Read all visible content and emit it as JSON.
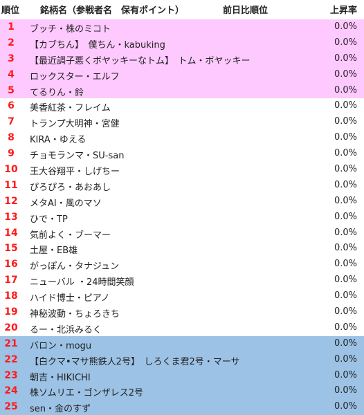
{
  "header": {
    "rank": "順位",
    "name": "銘柄名（参戦者名　保有ポイント）",
    "prev": "前日比順位",
    "rate": "上昇率"
  },
  "colors": {
    "rank_text": "#ff1a1a",
    "top_band": "#fec9fe",
    "bottom_band": "#9cc2e5"
  },
  "rows": [
    {
      "rank": "1",
      "name": "ブッチ・株のミコト",
      "rate": "0.0%",
      "band": "pink"
    },
    {
      "rank": "2",
      "name": "【カブちん】　僕ちん・kabuking",
      "rate": "0.0%",
      "band": "pink"
    },
    {
      "rank": "3",
      "name": "【最近調子悪くボヤッキーなトム】　トム・ボヤッキー",
      "rate": "0.0%",
      "band": "pink"
    },
    {
      "rank": "4",
      "name": "ロックスター・エルフ",
      "rate": "0.0%",
      "band": "pink"
    },
    {
      "rank": "5",
      "name": "てるりん・鈴",
      "rate": "0.0%",
      "band": "pink"
    },
    {
      "rank": "6",
      "name": "美香紅茶・フレイム",
      "rate": "0.0%",
      "band": "white"
    },
    {
      "rank": "7",
      "name": "トランプ大明神・宮健",
      "rate": "0.0%",
      "band": "white"
    },
    {
      "rank": "8",
      "name": "KIRA・ゆえる",
      "rate": "0.0%",
      "band": "white"
    },
    {
      "rank": "9",
      "name": "チョモランマ・SU-san",
      "rate": "0.0%",
      "band": "white"
    },
    {
      "rank": "10",
      "name": "王大谷翔平・しげちー",
      "rate": "0.0%",
      "band": "white"
    },
    {
      "rank": "11",
      "name": "ぴろぴろ・あおあし",
      "rate": "0.0%",
      "band": "white"
    },
    {
      "rank": "12",
      "name": "メタAI・風のマソ",
      "rate": "0.0%",
      "band": "white"
    },
    {
      "rank": "13",
      "name": "ひで・TP",
      "rate": "0.0%",
      "band": "white"
    },
    {
      "rank": "14",
      "name": "気前よく・ブーマー",
      "rate": "0.0%",
      "band": "white"
    },
    {
      "rank": "15",
      "name": "土屋・EB雄",
      "rate": "0.0%",
      "band": "white"
    },
    {
      "rank": "16",
      "name": "がっぽん・タナジュン",
      "rate": "0.0%",
      "band": "white"
    },
    {
      "rank": "17",
      "name": "ニューバル ・24時間笑顔",
      "rate": "0.0%",
      "band": "white"
    },
    {
      "rank": "18",
      "name": "ハイド博士・ピアノ",
      "rate": "0.0%",
      "band": "white"
    },
    {
      "rank": "19",
      "name": "神秘波動・ちょろきち",
      "rate": "0.0%",
      "band": "white"
    },
    {
      "rank": "20",
      "name": "るー・北浜みるく",
      "rate": "0.0%",
      "band": "white"
    },
    {
      "rank": "21",
      "name": "バロン・mogu",
      "rate": "0.0%",
      "band": "blue"
    },
    {
      "rank": "22",
      "name": "【白クマ•マサ熊鉄人2号】　しろくま君2号・マーサ",
      "rate": "0.0%",
      "band": "blue"
    },
    {
      "rank": "23",
      "name": "朝吉・HIKICHI",
      "rate": "0.0%",
      "band": "blue"
    },
    {
      "rank": "24",
      "name": "株ソムリエ・ゴンザレス2号",
      "rate": "0.0%",
      "band": "blue"
    },
    {
      "rank": "25",
      "name": "sen・金のすず",
      "rate": "0.0%",
      "band": "blue"
    }
  ]
}
